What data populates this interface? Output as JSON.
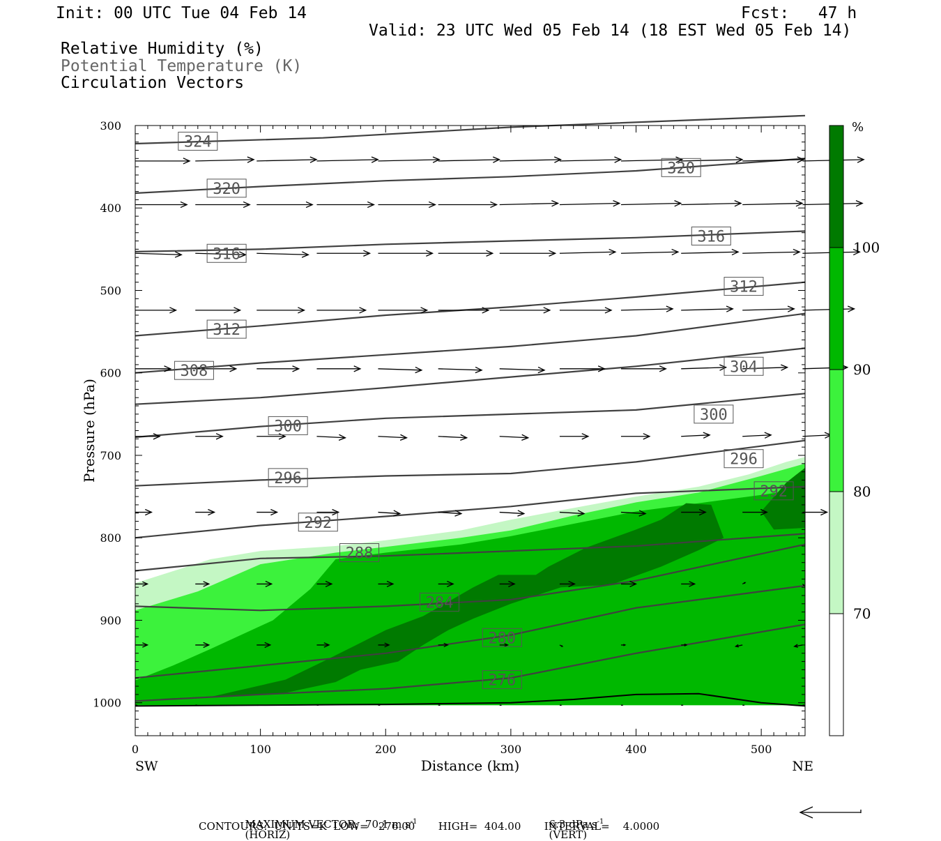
{
  "header": {
    "init": "Init: 00 UTC Tue 04 Feb 14",
    "fcst": "Fcst:   47 h",
    "valid": "Valid: 23 UTC Wed 05 Feb 14 (18 EST Wed 05 Feb 14)",
    "fields": [
      "Relative Humidity (%)",
      "Potential Temperature (K)",
      "Circulation Vectors"
    ]
  },
  "footer": {
    "max_vector": "MAXIMUM VECTOR:  70.1 m s",
    "horiz": "(HORIZ)",
    "vert_value": "6.3 dPa s",
    "vert": "(VERT)",
    "contours": "CONTOURS:  UNITS=K  LOW=   276.00       HIGH=  404.00       INTERVAL=    4.0000"
  },
  "colors": {
    "rh70": "#c4f7c4",
    "rh80": "#3cf23c",
    "rh90": "#00b800",
    "rh100": "#007a00",
    "contour": "#404040",
    "label_text": "#555555"
  },
  "chart_data": {
    "type": "contour-cross-section",
    "xlabel": "Distance (km)",
    "ylabel": "Pressure (hPa)",
    "xlim": [
      0,
      535
    ],
    "ylim": [
      1040,
      300
    ],
    "x_ticks": [
      0,
      100,
      200,
      300,
      400,
      500
    ],
    "y_ticks": [
      300,
      400,
      500,
      600,
      700,
      800,
      900,
      1000
    ],
    "x_end_labels": {
      "left": "SW",
      "right": "NE"
    },
    "colorbar": {
      "unit": "%",
      "levels": [
        70,
        80,
        90,
        100
      ]
    },
    "theta_contours": [
      {
        "value": 324,
        "x": [
          0,
          150,
          300,
          535
        ],
        "p": [
          322,
          315,
          302,
          288
        ]
      },
      {
        "value": 320,
        "x": [
          0,
          100,
          200,
          300,
          400,
          535
        ],
        "p": [
          382,
          374,
          367,
          362,
          355,
          340
        ]
      },
      {
        "value": 316,
        "x": [
          0,
          100,
          200,
          300,
          400,
          535
        ],
        "p": [
          453,
          450,
          444,
          440,
          436,
          428
        ]
      },
      {
        "value": 312,
        "x": [
          0,
          100,
          200,
          300,
          400,
          535
        ],
        "p": [
          555,
          543,
          530,
          520,
          508,
          490
        ]
      },
      {
        "value": 308,
        "x": [
          0,
          100,
          200,
          300,
          400,
          535
        ],
        "p": [
          600,
          588,
          578,
          568,
          555,
          528
        ]
      },
      {
        "value": 304,
        "x": [
          0,
          100,
          200,
          300,
          400,
          535
        ],
        "p": [
          638,
          630,
          618,
          605,
          592,
          570
        ]
      },
      {
        "value": 300,
        "x": [
          0,
          100,
          200,
          300,
          400,
          535
        ],
        "p": [
          678,
          665,
          655,
          650,
          645,
          625
        ]
      },
      {
        "value": 296,
        "x": [
          0,
          100,
          200,
          300,
          400,
          535
        ],
        "p": [
          737,
          730,
          725,
          722,
          708,
          682
        ]
      },
      {
        "value": 292,
        "x": [
          0,
          100,
          200,
          300,
          400,
          535
        ],
        "p": [
          800,
          785,
          774,
          762,
          746,
          738
        ]
      },
      {
        "value": 288,
        "x": [
          0,
          100,
          200,
          300,
          400,
          535
        ],
        "p": [
          840,
          825,
          822,
          816,
          810,
          795
        ]
      },
      {
        "value": 284,
        "x": [
          0,
          100,
          200,
          300,
          400,
          535
        ],
        "p": [
          883,
          888,
          883,
          875,
          852,
          808
        ]
      },
      {
        "value": 280,
        "x": [
          0,
          100,
          200,
          300,
          400,
          535
        ],
        "p": [
          970,
          955,
          940,
          918,
          885,
          858
        ]
      },
      {
        "value": 276,
        "x": [
          0,
          100,
          200,
          300,
          400,
          535
        ],
        "p": [
          998,
          990,
          983,
          970,
          940,
          905
        ]
      }
    ],
    "contour_labels": [
      {
        "value": 324,
        "x": 50,
        "p": 319
      },
      {
        "value": 320,
        "x": 73,
        "p": 376
      },
      {
        "value": 320,
        "x": 436,
        "p": 351
      },
      {
        "value": 316,
        "x": 73,
        "p": 455
      },
      {
        "value": 316,
        "x": 460,
        "p": 434
      },
      {
        "value": 312,
        "x": 73,
        "p": 547
      },
      {
        "value": 312,
        "x": 486,
        "p": 495
      },
      {
        "value": 308,
        "x": 47,
        "p": 597
      },
      {
        "value": 304,
        "x": 486,
        "p": 592
      },
      {
        "value": 300,
        "x": 122,
        "p": 664
      },
      {
        "value": 300,
        "x": 462,
        "p": 650
      },
      {
        "value": 296,
        "x": 122,
        "p": 727
      },
      {
        "value": 296,
        "x": 486,
        "p": 704
      },
      {
        "value": 292,
        "x": 146,
        "p": 781
      },
      {
        "value": 292,
        "x": 510,
        "p": 743
      },
      {
        "value": 288,
        "x": 179,
        "p": 818
      },
      {
        "value": 284,
        "x": 243,
        "p": 878
      },
      {
        "value": 280,
        "x": 293,
        "p": 921
      },
      {
        "value": 276,
        "x": 293,
        "p": 972
      }
    ],
    "rh_regions": [
      {
        "level": 70,
        "x": [
          0,
          60,
          100,
          160,
          200,
          260,
          300,
          360,
          400,
          450,
          490,
          520,
          535,
          535,
          0
        ],
        "p": [
          855,
          826,
          816,
          810,
          803,
          791,
          778,
          761,
          750,
          738,
          723,
          708,
          702,
          1003,
          1003
        ]
      },
      {
        "level": 80,
        "x": [
          0,
          50,
          100,
          160,
          200,
          260,
          300,
          350,
          400,
          450,
          500,
          535,
          535,
          0
        ],
        "p": [
          888,
          865,
          832,
          818,
          811,
          800,
          791,
          773,
          757,
          745,
          725,
          710,
          1003,
          1003
        ]
      },
      {
        "level": 90,
        "x": [
          0,
          30,
          60,
          110,
          140,
          160,
          200,
          260,
          300,
          350,
          400,
          450,
          500,
          535,
          535,
          0
        ],
        "p": [
          973,
          955,
          935,
          900,
          862,
          826,
          818,
          808,
          798,
          783,
          768,
          758,
          748,
          740,
          1003,
          1003
        ]
      },
      {
        "level": 100,
        "x": [
          20,
          60,
          120,
          150,
          170,
          200,
          230,
          270,
          290,
          320,
          330,
          360,
          400,
          420,
          440,
          460,
          470,
          450,
          420,
          380,
          340,
          320,
          300,
          270,
          250,
          230,
          210,
          180,
          160,
          120,
          80,
          40,
          20
        ],
        "p": [
          995,
          993,
          972,
          950,
          935,
          912,
          895,
          860,
          845,
          845,
          835,
          812,
          790,
          778,
          758,
          760,
          800,
          815,
          835,
          857,
          860,
          870,
          880,
          898,
          912,
          930,
          950,
          960,
          975,
          988,
          992,
          995,
          995
        ]
      },
      {
        "level": 100,
        "x": [
          500,
          520,
          535,
          535,
          510,
          500
        ],
        "p": [
          768,
          733,
          715,
          788,
          790,
          768
        ]
      },
      {
        "level": 90,
        "x": [
          220,
          270,
          270,
          220
        ],
        "p": [
          987,
          987,
          993,
          993
        ]
      }
    ],
    "surface": {
      "x": [
        0,
        100,
        200,
        300,
        350,
        400,
        450,
        500,
        535
      ],
      "p": [
        1004,
        1003,
        1002,
        1000,
        996,
        990,
        989,
        1000,
        1004
      ]
    },
    "circulation_vectors": {
      "x": [
        0,
        48,
        97,
        145,
        194,
        242,
        291,
        339,
        388,
        436,
        485,
        533
      ],
      "rows": [
        {
          "p": 343,
          "u": [
            40,
            43,
            44,
            45,
            45,
            45,
            45,
            45,
            45,
            45,
            45,
            45
          ],
          "w": [
            0,
            -1,
            -1,
            -1,
            -1,
            -1,
            -1,
            -1,
            -1,
            -1,
            -1,
            -1
          ]
        },
        {
          "p": 396,
          "u": [
            38,
            40,
            41,
            42,
            42,
            43,
            43,
            44,
            44,
            44,
            44,
            44
          ],
          "w": [
            0,
            0,
            0,
            0,
            0,
            0,
            -1,
            -1,
            -1,
            -1,
            -1,
            -1
          ]
        },
        {
          "p": 455,
          "u": [
            34,
            37,
            38,
            39,
            40,
            40,
            41,
            41,
            42,
            42,
            42,
            42
          ],
          "w": [
            1,
            1,
            1,
            0,
            0,
            0,
            0,
            -1,
            -1,
            -1,
            -1,
            -1
          ]
        },
        {
          "p": 524,
          "u": [
            30,
            33,
            35,
            36,
            36,
            37,
            37,
            38,
            38,
            38,
            38,
            38
          ],
          "w": [
            0,
            0,
            0,
            0,
            0,
            0,
            0,
            0,
            -1,
            -1,
            -1,
            -1
          ]
        },
        {
          "p": 595,
          "u": [
            26,
            30,
            31,
            32,
            32,
            32,
            33,
            33,
            33,
            33,
            33,
            33
          ],
          "w": [
            0,
            0,
            0,
            0,
            1,
            1,
            1,
            0,
            0,
            -1,
            -1,
            -1
          ]
        },
        {
          "p": 677,
          "u": [
            18,
            20,
            21,
            21,
            21,
            21,
            21,
            21,
            21,
            21,
            21,
            21
          ],
          "w": [
            0,
            0,
            0,
            1,
            1,
            1,
            1,
            0,
            0,
            -1,
            -1,
            -1
          ]
        },
        {
          "p": 769,
          "u": [
            12,
            14,
            15,
            16,
            16,
            17,
            18,
            18,
            18,
            18,
            18,
            18
          ],
          "w": [
            0,
            0,
            0,
            0,
            1,
            1,
            1,
            1,
            1,
            0,
            0,
            0
          ]
        },
        {
          "p": 856,
          "u": [
            9,
            10,
            11,
            11,
            11,
            11,
            11,
            11,
            11,
            10,
            2,
            1
          ],
          "w": [
            0,
            0,
            0,
            0,
            0,
            0,
            0,
            0,
            0,
            0,
            -1,
            1
          ]
        },
        {
          "p": 930,
          "u": [
            9,
            10,
            10,
            9,
            8,
            7,
            6,
            2,
            3,
            4,
            -5,
            -6
          ],
          "w": [
            0,
            0,
            0,
            0,
            0,
            0,
            0,
            1,
            0,
            0,
            1,
            1
          ]
        },
        {
          "p": 1003,
          "u": [
            1,
            1,
            1,
            1,
            1,
            1,
            1,
            1,
            1,
            1,
            1,
            1
          ],
          "w": [
            0,
            0,
            0,
            0,
            0,
            0,
            0,
            0,
            0,
            0,
            0,
            0
          ]
        }
      ]
    }
  }
}
